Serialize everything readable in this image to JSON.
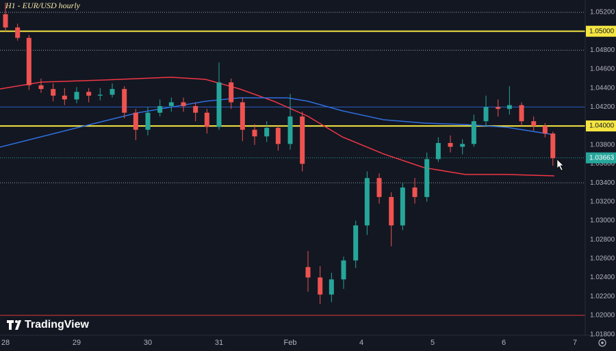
{
  "chart_data": {
    "type": "candlestick",
    "title": "H1 - EUR/USD hourly",
    "brand": "TradingView",
    "up_color": "#26a69a",
    "down_color": "#ef5350",
    "xlim": [
      -0.077,
      8.144
    ],
    "xticks": [
      {
        "value": 0,
        "label": "28"
      },
      {
        "value": 1,
        "label": "29"
      },
      {
        "value": 2,
        "label": "30"
      },
      {
        "value": 3,
        "label": "31"
      },
      {
        "value": 4,
        "label": "Feb"
      },
      {
        "value": 5,
        "label": "4"
      },
      {
        "value": 6,
        "label": "5"
      },
      {
        "value": 7,
        "label": "6"
      },
      {
        "value": 8,
        "label": "7"
      }
    ],
    "ylim": [
      1.0179,
      1.0533
    ],
    "yticks": [
      {
        "value": 1.018,
        "label": "1.01800"
      },
      {
        "value": 1.02,
        "label": "1.02000"
      },
      {
        "value": 1.022,
        "label": "1.02200"
      },
      {
        "value": 1.024,
        "label": "1.02400"
      },
      {
        "value": 1.026,
        "label": "1.02600"
      },
      {
        "value": 1.028,
        "label": "1.02800"
      },
      {
        "value": 1.03,
        "label": "1.03000"
      },
      {
        "value": 1.032,
        "label": "1.03200"
      },
      {
        "value": 1.034,
        "label": "1.03400"
      },
      {
        "value": 1.036,
        "label": "1.03600"
      },
      {
        "value": 1.038,
        "label": "1.03800"
      },
      {
        "value": 1.04,
        "label": "1.04000"
      },
      {
        "value": 1.042,
        "label": "1.04200"
      },
      {
        "value": 1.044,
        "label": "1.04400"
      },
      {
        "value": 1.046,
        "label": "1.04600"
      },
      {
        "value": 1.048,
        "label": "1.04800"
      },
      {
        "value": 1.05,
        "label": "1.05000"
      },
      {
        "value": 1.052,
        "label": "1.05200"
      }
    ],
    "grid": false,
    "x": [
      0,
      0.17,
      0.33,
      0.5,
      0.67,
      0.83,
      1,
      1.17,
      1.33,
      1.5,
      1.67,
      1.83,
      2,
      2.17,
      2.33,
      2.5,
      2.67,
      2.83,
      3,
      3.17,
      3.33,
      3.5,
      3.67,
      3.83,
      4,
      4.17,
      4.25,
      4.42,
      4.58,
      4.75,
      4.92,
      5.08,
      5.25,
      5.42,
      5.58,
      5.75,
      5.92,
      6.08,
      6.25,
      6.42,
      6.58,
      6.75,
      6.92,
      7.08,
      7.25,
      7.42,
      7.58,
      7.69
    ],
    "open": [
      1.0518,
      1.0504,
      1.0493,
      1.0443,
      1.0439,
      1.0432,
      1.0428,
      1.0436,
      1.0432,
      1.0433,
      1.0439,
      1.0414,
      1.0396,
      1.0414,
      1.0421,
      1.0425,
      1.0421,
      1.0414,
      1.0399,
      1.0446,
      1.0425,
      1.0396,
      1.0389,
      1.0398,
      1.0381,
      1.041,
      1.0251,
      1.024,
      1.0222,
      1.0238,
      1.0258,
      1.0295,
      1.0345,
      1.0325,
      1.0295,
      1.0335,
      1.0325,
      1.0365,
      1.0382,
      1.0378,
      1.0381,
      1.0405,
      1.042,
      1.0418,
      1.0422,
      1.0405,
      1.04,
      1.0392
    ],
    "high": [
      1.053,
      1.0508,
      1.0496,
      1.045,
      1.0445,
      1.044,
      1.0441,
      1.044,
      1.044,
      1.0445,
      1.0442,
      1.0418,
      1.042,
      1.0428,
      1.043,
      1.043,
      1.0425,
      1.0418,
      1.0467,
      1.045,
      1.043,
      1.0402,
      1.0405,
      1.04,
      1.0434,
      1.0415,
      1.0268,
      1.0252,
      1.0245,
      1.0262,
      1.03,
      1.0352,
      1.035,
      1.033,
      1.034,
      1.0345,
      1.0372,
      1.0388,
      1.039,
      1.0386,
      1.0412,
      1.0432,
      1.0428,
      1.0442,
      1.0425,
      1.041,
      1.0403,
      1.0394
    ],
    "low": [
      1.05,
      1.049,
      1.0438,
      1.0435,
      1.0426,
      1.0422,
      1.0424,
      1.0425,
      1.0427,
      1.043,
      1.0408,
      1.0385,
      1.039,
      1.041,
      1.0415,
      1.0415,
      1.0405,
      1.0392,
      1.0396,
      1.0418,
      1.0384,
      1.038,
      1.0383,
      1.0374,
      1.0375,
      1.0352,
      1.0225,
      1.0212,
      1.0214,
      1.0228,
      1.025,
      1.0285,
      1.0318,
      1.0273,
      1.029,
      1.0318,
      1.032,
      1.0362,
      1.0372,
      1.037,
      1.0378,
      1.04,
      1.041,
      1.0412,
      1.04,
      1.0395,
      1.0388,
      1.0358
    ],
    "close": [
      1.0504,
      1.0493,
      1.0443,
      1.0439,
      1.0432,
      1.0428,
      1.0436,
      1.0432,
      1.0433,
      1.0439,
      1.0414,
      1.0396,
      1.0414,
      1.0421,
      1.0425,
      1.0421,
      1.0414,
      1.0399,
      1.0446,
      1.0425,
      1.0396,
      1.0389,
      1.0398,
      1.0381,
      1.041,
      1.036,
      1.024,
      1.0222,
      1.0238,
      1.0258,
      1.0295,
      1.0345,
      1.0325,
      1.0295,
      1.0335,
      1.0325,
      1.0365,
      1.0382,
      1.0378,
      1.0381,
      1.0405,
      1.042,
      1.0418,
      1.0422,
      1.0405,
      1.04,
      1.0392,
      1.0366
    ],
    "series": [
      {
        "color": "#f23645",
        "x": [
          -0.077,
          0.5,
          1.37,
          2.33,
          2.81,
          3.29,
          3.77,
          4.25,
          4.73,
          5.31,
          5.88,
          6.46,
          7.04,
          7.71
        ],
        "values": [
          1.04391,
          1.04463,
          1.04485,
          1.04514,
          1.04492,
          1.04391,
          1.04261,
          1.04102,
          1.03885,
          1.03705,
          1.0356,
          1.03488,
          1.03488,
          1.03473
        ]
      },
      {
        "color": "#2f6fe0",
        "x": [
          -0.077,
          0.88,
          1.85,
          2.81,
          3.29,
          3.96,
          4.25,
          4.73,
          5.31,
          5.88,
          6.46,
          7.04,
          7.71
        ],
        "values": [
          1.03777,
          1.03957,
          1.04138,
          1.04261,
          1.04297,
          1.04297,
          1.04261,
          1.0416,
          1.04066,
          1.0403,
          1.04015,
          1.03986,
          1.03907
        ]
      }
    ],
    "levels": [
      {
        "value": 1.05,
        "label": "1.05000",
        "color": "#f5e642",
        "style": "solid",
        "width": 2
      },
      {
        "value": 1.04,
        "label": "1.04000",
        "color": "#f5e642",
        "style": "solid",
        "width": 2
      },
      {
        "value": 1.042,
        "color": "#2a5fc4",
        "style": "solid",
        "width": 1
      },
      {
        "value": 1.02,
        "color": "#e03a3a",
        "style": "solid",
        "width": 1
      },
      {
        "value": 1.052,
        "color": "#9aa0aa",
        "style": "dotted",
        "width": 1
      },
      {
        "value": 1.048,
        "color": "#9aa0aa",
        "style": "dotted",
        "width": 1
      },
      {
        "value": 1.034,
        "color": "#9aa0aa",
        "style": "dotted",
        "width": 1
      },
      {
        "value": 1.03663,
        "color": "#26a69a",
        "style": "dotted",
        "width": 1,
        "tag": true
      }
    ]
  }
}
